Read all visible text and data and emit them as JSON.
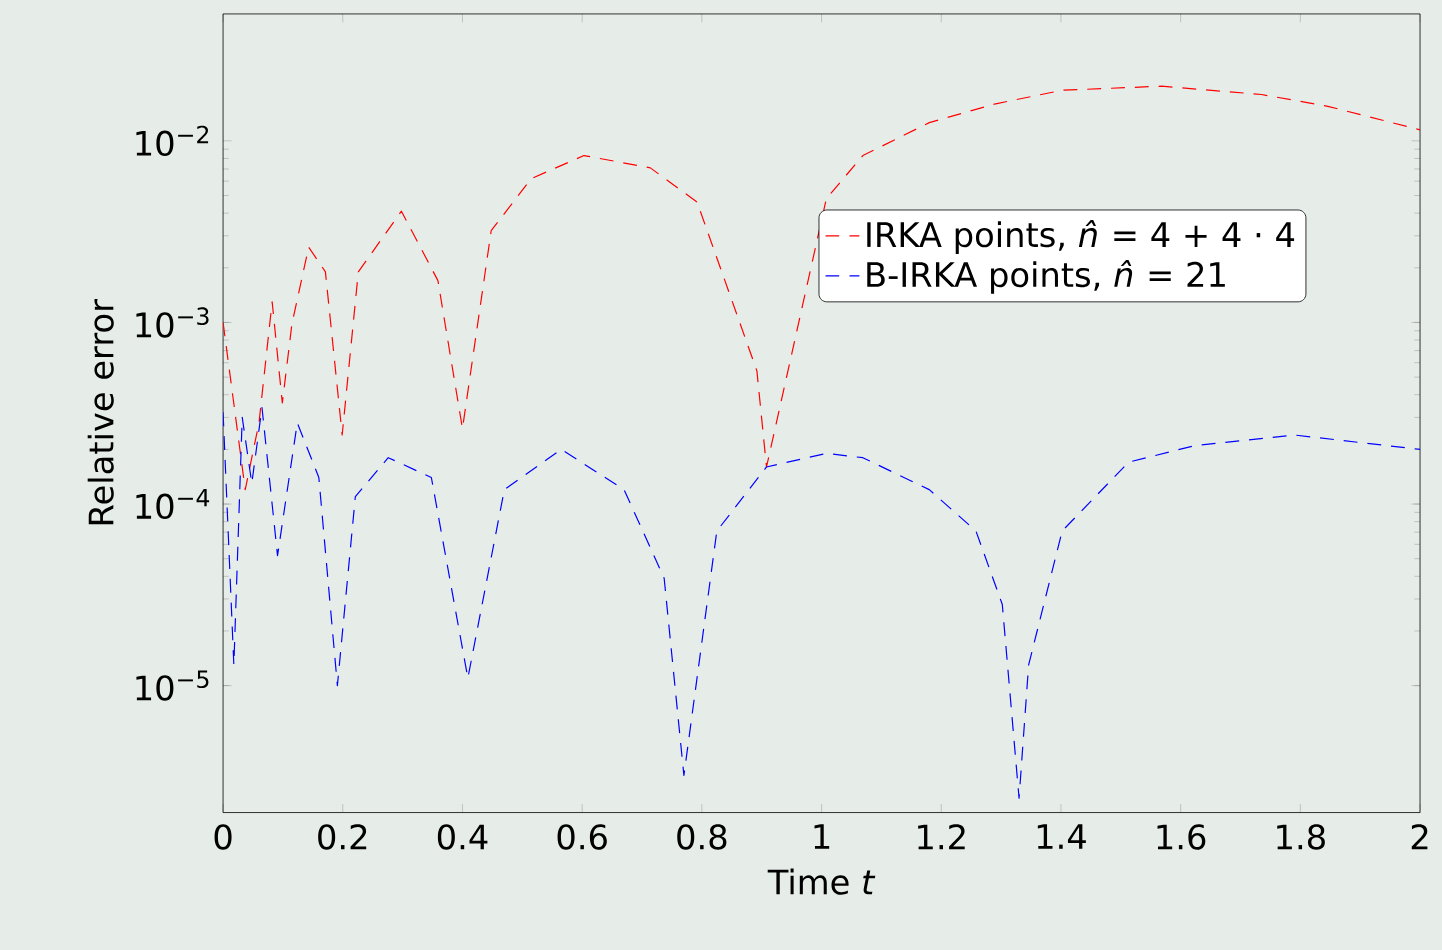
{
  "chart_data": {
    "type": "line",
    "xlabel": "Time *t*",
    "ylabel": "Relative error",
    "log": "y",
    "line_style": "dashed",
    "legend": "top right",
    "grid": false,
    "xlim": [
      0,
      2
    ],
    "xticks": [
      0,
      0.2,
      0.4,
      0.6,
      0.8,
      1,
      1.2,
      1.4,
      1.6,
      1.8,
      2
    ],
    "ylim": [
      2e-06,
      0.05
    ],
    "yticks": [
      {
        "value": 1e-05,
        "label": "10$^{−5}$"
      },
      {
        "value": 0.0001,
        "label": "10$^{−4}$"
      },
      {
        "value": 0.001,
        "label": "10$^{−3}$"
      },
      {
        "value": 0.01,
        "label": "10$^{−2}$"
      }
    ],
    "series": [
      {
        "name": "IRKA points,  *n̂* = 4 + 4 · 4",
        "color": "#ff0000",
        "x": [
          0,
          0.037,
          0.06,
          0.082,
          0.099,
          0.115,
          0.143,
          0.171,
          0.199,
          0.226,
          0.298,
          0.359,
          0.4,
          0.448,
          0.515,
          0.603,
          0.714,
          0.792,
          0.892,
          0.908,
          1.008,
          1.069,
          1.18,
          1.291,
          1.402,
          1.568,
          1.735,
          1.846,
          2
        ],
        "values": [
          0.001,
          0.00012,
          0.00028,
          0.0013,
          0.00036,
          0.00098,
          0.0026,
          0.0019,
          0.00024,
          0.0019,
          0.0041,
          0.0017,
          0.00026,
          0.0032,
          0.0062,
          0.0083,
          0.0071,
          0.0046,
          0.00054,
          0.00016,
          0.0048,
          0.0083,
          0.0126,
          0.016,
          0.019,
          0.02,
          0.018,
          0.0155,
          0.0115
        ]
      },
      {
        "name": "B-IRKA points,  *n̂* = 21",
        "color": "#0000ff",
        "x": [
          0,
          0.018,
          0.032,
          0.048,
          0.065,
          0.091,
          0.124,
          0.16,
          0.191,
          0.221,
          0.276,
          0.348,
          0.409,
          0.47,
          0.565,
          0.67,
          0.737,
          0.77,
          0.825,
          0.908,
          1.008,
          1.069,
          1.18,
          1.258,
          1.302,
          1.33,
          1.346,
          1.402,
          1.513,
          1.624,
          1.79,
          2
        ],
        "values": [
          0.00032,
          1.3e-05,
          0.0003,
          0.00013,
          0.00034,
          5.2e-05,
          0.00028,
          0.00014,
          1e-05,
          0.00011,
          0.00018,
          0.00014,
          1.1e-05,
          0.00012,
          0.0002,
          0.00012,
          3.9e-05,
          3.2e-06,
          7.1e-05,
          0.00016,
          0.00019,
          0.00018,
          0.00012,
          7.1e-05,
          2.8e-05,
          2.4e-06,
          1.3e-05,
          7.1e-05,
          0.00017,
          0.00021,
          0.00024,
          0.0002
        ]
      }
    ]
  }
}
